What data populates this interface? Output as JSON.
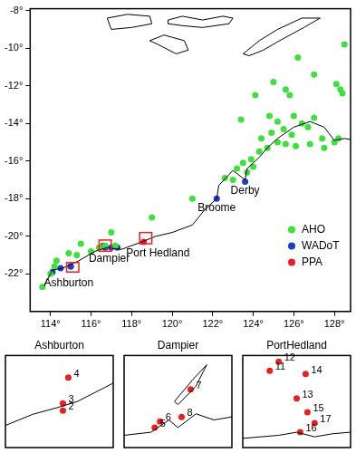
{
  "chart_data": [
    {
      "type": "scatter",
      "xlim": [
        113,
        128.8
      ],
      "xticks": [
        {
          "value": 114,
          "label": "114°"
        },
        {
          "value": 116,
          "label": "116°"
        },
        {
          "value": 118,
          "label": "118°"
        },
        {
          "value": 120,
          "label": "120°"
        },
        {
          "value": 122,
          "label": "122°"
        },
        {
          "value": 124,
          "label": "124°"
        },
        {
          "value": 126,
          "label": "126°"
        },
        {
          "value": 128,
          "label": "128°"
        }
      ],
      "ylim": [
        -24,
        -7.9
      ],
      "yticks": [
        {
          "value": -8,
          "label": "-8°"
        },
        {
          "value": -10,
          "label": "-10°"
        },
        {
          "value": -12,
          "label": "-12°"
        },
        {
          "value": -14,
          "label": "-14°"
        },
        {
          "value": -16,
          "label": "-16°"
        },
        {
          "value": -18,
          "label": "-18°"
        },
        {
          "value": -20,
          "label": "-20°"
        },
        {
          "value": -22,
          "label": "-22°"
        }
      ],
      "grid": false,
      "legend": "right",
      "coastline": [
        {
          "x": [
            113.7,
            114.1,
            114.6,
            115.4,
            116.2,
            116.8,
            117.5,
            118.5,
            119.2,
            120.0,
            121.0,
            121.6,
            122.2,
            122.3,
            123.0,
            123.6,
            123.7,
            124.3,
            124.7,
            125.2,
            126.0,
            126.8,
            127.5,
            128.0,
            128.5,
            129.0,
            129.5
          ],
          "y": [
            -22.6,
            -21.8,
            -21.7,
            -21.3,
            -20.8,
            -20.6,
            -20.7,
            -20.3,
            -20.0,
            -19.8,
            -19.4,
            -18.6,
            -18.0,
            -17.3,
            -16.5,
            -17.0,
            -16.4,
            -15.8,
            -15.3,
            -14.8,
            -14.2,
            -13.9,
            -14.2,
            -14.9,
            -14.8,
            -14.9,
            -15.0
          ]
        },
        {
          "x": [
            116.8,
            117.8,
            118.9,
            119.0,
            118.0,
            117.0,
            116.8
          ],
          "y": [
            -8.4,
            -8.2,
            -8.3,
            -8.7,
            -8.9,
            -9.0,
            -8.4
          ]
        },
        {
          "x": [
            119.8,
            120.5,
            121.5,
            122.5,
            123.0,
            122.8,
            121.5,
            120.5,
            119.8,
            119.8
          ],
          "y": [
            -8.5,
            -8.3,
            -8.5,
            -8.3,
            -8.4,
            -8.7,
            -8.9,
            -8.8,
            -8.7,
            -8.5
          ]
        },
        {
          "x": [
            118.9,
            119.6,
            120.6,
            120.8,
            120.2,
            119.3,
            118.9
          ],
          "y": [
            -9.6,
            -9.3,
            -9.6,
            -10.1,
            -10.3,
            -9.8,
            -9.6
          ]
        },
        {
          "x": [
            123.5,
            124.3,
            125.2,
            126.4,
            127.3,
            126.5,
            125.3,
            124.5,
            123.8,
            123.5
          ],
          "y": [
            -10.3,
            -9.6,
            -9.0,
            -8.4,
            -8.4,
            -8.9,
            -9.6,
            -10.1,
            -10.4,
            -10.3
          ]
        }
      ],
      "series": [
        {
          "name": "AHO",
          "color": "#3ee03e",
          "marker": "circle",
          "x": [
            128.5,
            126.2,
            127.0,
            128.1,
            128.3,
            128.4,
            125.0,
            125.6,
            124.1,
            123.4,
            124.8,
            125.8,
            127.0,
            126.0,
            125.2,
            126.4,
            126.7,
            125.5,
            124.9,
            125.9,
            124.4,
            125.2,
            124.7,
            124.3,
            125.6,
            126.1,
            127.4,
            128.0,
            128.2,
            123.9,
            123.5,
            124.0,
            123.7,
            123.2,
            123.0,
            122.6,
            121.0,
            119.0,
            117.0,
            115.5,
            114.9,
            114.2,
            114.0,
            113.6,
            114.3,
            116.7,
            116.4,
            117.2,
            116.0,
            115.3,
            127.5,
            126.8
          ],
          "y": [
            -9.8,
            -10.5,
            -11.4,
            -11.9,
            -12.2,
            -12.4,
            -11.8,
            -12.2,
            -12.5,
            -13.8,
            -13.6,
            -12.5,
            -13.7,
            -13.6,
            -13.9,
            -14.0,
            -14.2,
            -14.3,
            -14.5,
            -14.6,
            -14.8,
            -15.0,
            -15.3,
            -15.5,
            -15.1,
            -15.2,
            -14.8,
            -15.0,
            -14.8,
            -15.9,
            -16.1,
            -16.3,
            -16.6,
            -16.4,
            -17.0,
            -16.9,
            -18.0,
            -19.0,
            -19.8,
            -20.4,
            -20.9,
            -21.6,
            -22.0,
            -22.7,
            -21.3,
            -20.5,
            -20.6,
            -20.5,
            -20.8,
            -21.0,
            -15.3,
            -15.1
          ]
        },
        {
          "name": "WADoT",
          "color": "#1a3fcc",
          "marker": "circle",
          "x": [
            123.6,
            122.2,
            116.7,
            117.0,
            117.3,
            115.0,
            114.1,
            114.5
          ],
          "y": [
            -17.1,
            -18.0,
            -20.6,
            -20.6,
            -20.6,
            -21.6,
            -21.9,
            -21.7
          ]
        },
        {
          "name": "PPA",
          "color": "#e82020",
          "marker": "circle",
          "x": [
            116.6,
            115.0,
            118.6
          ],
          "y": [
            -20.5,
            -21.6,
            -20.3
          ]
        }
      ],
      "inset_boxes": [
        {
          "x": [
            114.8,
            115.4
          ],
          "y": [
            -21.9,
            -21.4
          ]
        },
        {
          "x": [
            116.4,
            117.0
          ],
          "y": [
            -20.8,
            -20.2
          ]
        },
        {
          "x": [
            118.4,
            119.0
          ],
          "y": [
            -20.4,
            -19.8
          ]
        }
      ],
      "annotations": [
        {
          "text": "Derby",
          "x": 123.6,
          "y": -17.6
        },
        {
          "text": "Broome",
          "x": 122.2,
          "y": -18.5
        },
        {
          "text": "Dampier",
          "x": 116.9,
          "y": -21.2
        },
        {
          "text": "Port Hedland",
          "x": 119.3,
          "y": -20.9
        },
        {
          "text": "Ashburton",
          "x": 114.9,
          "y": -22.5
        }
      ]
    },
    {
      "type": "scatter",
      "title": "Ashburton",
      "xlim": [
        114.8,
        115.4
      ],
      "ylim": [
        -21.9,
        -21.4
      ],
      "grid": false,
      "tick_labels": false,
      "coastline": [
        {
          "x": [
            114.8,
            114.95,
            115.1,
            115.2,
            115.3,
            115.4
          ],
          "y": [
            -21.78,
            -21.72,
            -21.68,
            -21.65,
            -21.6,
            -21.55
          ]
        }
      ],
      "series": [
        {
          "color": "#e82020",
          "marker": "circle",
          "x": [
            115.15,
            115.12,
            115.12
          ],
          "y": [
            -21.52,
            -21.66,
            -21.7
          ],
          "labels": [
            "4",
            "3",
            "2"
          ]
        }
      ]
    },
    {
      "type": "scatter",
      "title": "Dampier",
      "xlim": [
        116.4,
        117.0
      ],
      "ylim": [
        -20.8,
        -20.2
      ],
      "grid": false,
      "tick_labels": false,
      "coastline": [
        {
          "x": [
            116.4,
            116.55,
            116.65,
            116.7,
            116.8,
            116.9,
            117.0
          ],
          "y": [
            -20.72,
            -20.7,
            -20.62,
            -20.67,
            -20.58,
            -20.62,
            -20.6
          ]
        },
        {
          "x": [
            116.68,
            116.78,
            116.86,
            116.8,
            116.7,
            116.68
          ],
          "y": [
            -20.5,
            -20.36,
            -20.26,
            -20.4,
            -20.52,
            -20.5
          ]
        }
      ],
      "series": [
        {
          "color": "#e82020",
          "marker": "circle",
          "x": [
            116.77,
            116.6,
            116.57,
            116.72
          ],
          "y": [
            -20.42,
            -20.63,
            -20.67,
            -20.6
          ],
          "labels": [
            "7",
            "6",
            "5",
            "8"
          ]
        }
      ]
    },
    {
      "type": "scatter",
      "title": "PortHedland",
      "xlim": [
        118.4,
        119.0
      ],
      "ylim": [
        -20.4,
        -19.8
      ],
      "grid": false,
      "tick_labels": false,
      "coastline": [
        {
          "x": [
            118.4,
            118.5,
            118.6,
            118.7,
            118.8,
            118.9,
            119.0
          ],
          "y": [
            -20.34,
            -20.33,
            -20.32,
            -20.3,
            -20.33,
            -20.31,
            -20.3
          ]
        }
      ],
      "series": [
        {
          "color": "#e82020",
          "marker": "circle",
          "x": [
            118.6,
            118.55,
            118.75,
            118.7,
            118.76,
            118.8,
            118.72
          ],
          "y": [
            -19.84,
            -19.9,
            -19.92,
            -20.08,
            -20.17,
            -20.24,
            -20.3
          ],
          "labels": [
            "12",
            "11",
            "14",
            "13",
            "15",
            "17",
            "16"
          ]
        }
      ]
    }
  ]
}
